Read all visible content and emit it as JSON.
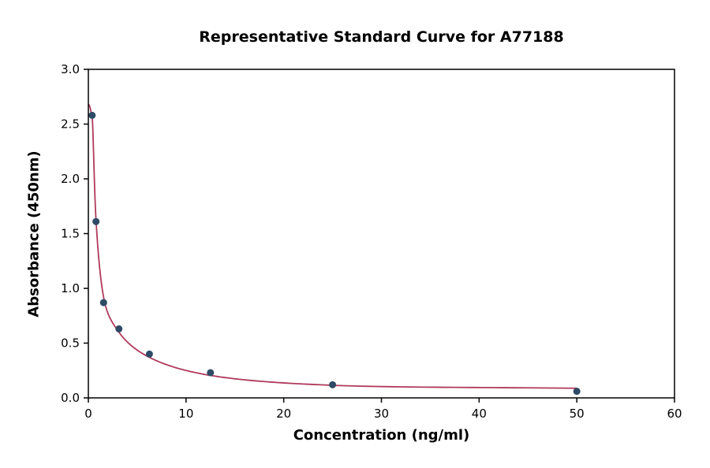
{
  "chart_data": {
    "type": "scatter",
    "title": "Representative Standard Curve for A77188",
    "xlabel": "Concentration (ng/ml)",
    "ylabel": "Absorbance (450nm)",
    "xlim": [
      0,
      60
    ],
    "ylim": [
      0.0,
      3.0
    ],
    "x_ticks": [
      0,
      10,
      20,
      30,
      40,
      50,
      60
    ],
    "y_ticks": [
      0.0,
      0.5,
      1.0,
      1.5,
      2.0,
      2.5,
      3.0
    ],
    "grid": false,
    "legend_position": "none",
    "frame_color": "#000000",
    "series": [
      {
        "name": "standard-data-points",
        "type": "scatter",
        "color": "#2e4a66",
        "marker_radius": 4.5,
        "x": [
          0.39,
          0.78,
          1.56,
          3.13,
          6.25,
          12.5,
          25,
          50
        ],
        "y": [
          2.58,
          1.61,
          0.87,
          0.63,
          0.4,
          0.23,
          0.12,
          0.06
        ]
      },
      {
        "name": "4pl-fitted-curve",
        "type": "line",
        "color": "#b03a5c",
        "line_width": 1.8,
        "anchors_x": [
          0.05,
          0.39,
          0.78,
          1.56,
          3.13,
          6.25,
          12.5,
          25,
          50
        ],
        "anchors_y": [
          2.68,
          2.56,
          1.63,
          0.92,
          0.6,
          0.37,
          0.205,
          0.115,
          0.088
        ]
      }
    ]
  }
}
